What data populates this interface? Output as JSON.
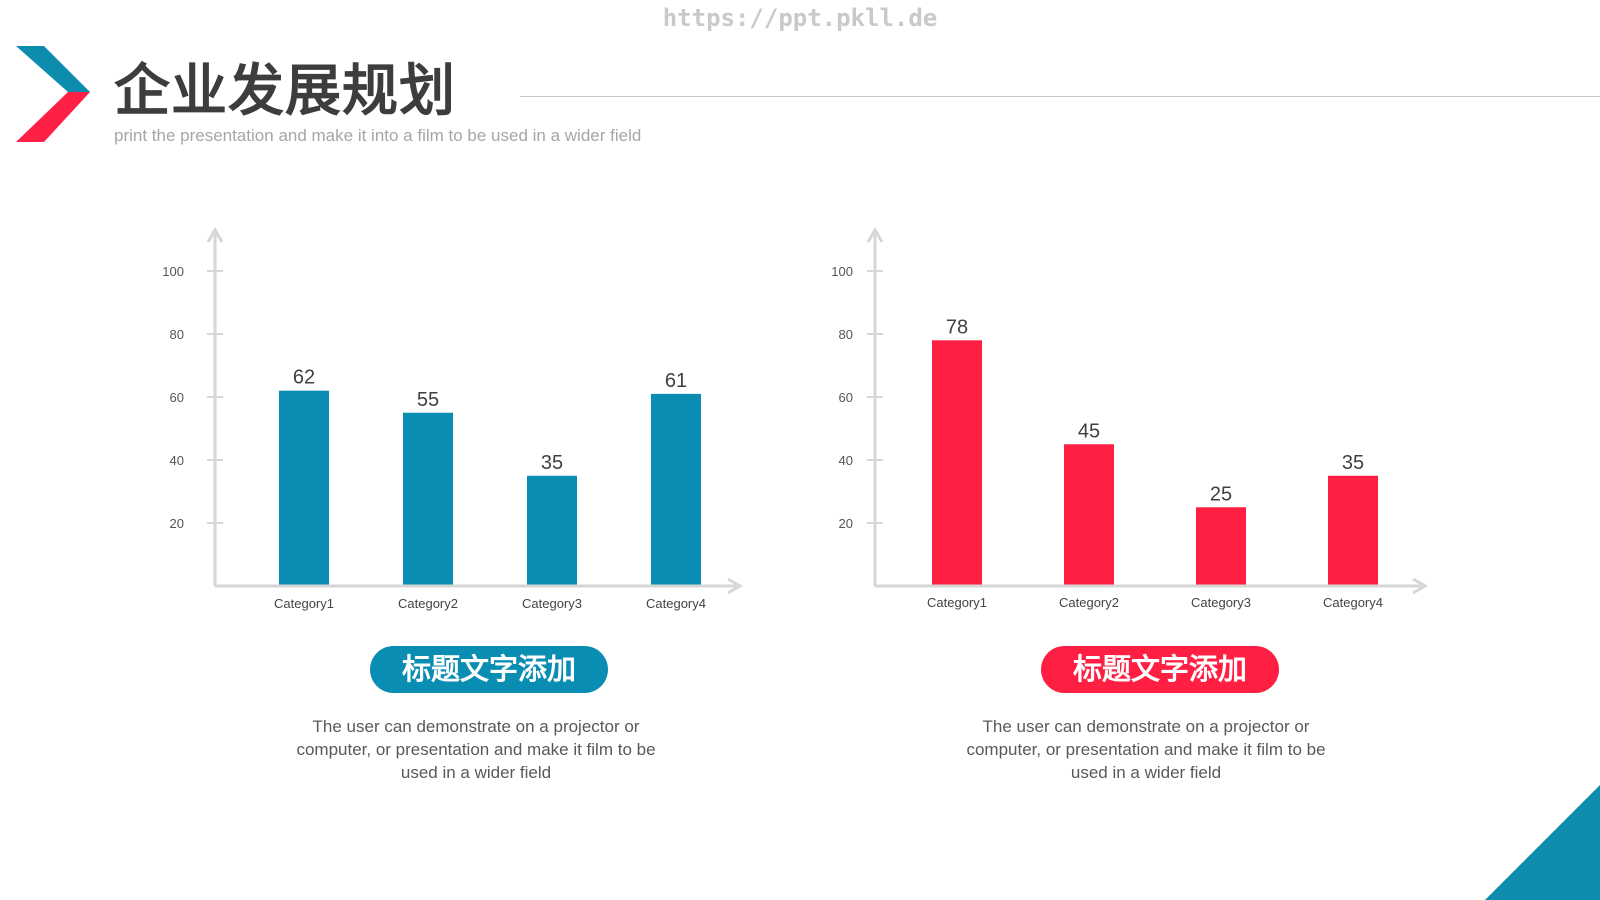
{
  "watermark": "https://ppt.pkll.de",
  "header": {
    "title": "企业发展规划",
    "subtitle": "print the presentation and make it into a film to be used in a wider field"
  },
  "colors": {
    "blue": "#0a8db2",
    "red": "#ff1f43",
    "axis": "#d6d6d6",
    "text": "#404040"
  },
  "chart_data": [
    {
      "type": "bar",
      "categories": [
        "Category1",
        "Category2",
        "Category3",
        "Category4"
      ],
      "values": [
        62,
        55,
        35,
        61
      ],
      "y_ticks": [
        20,
        40,
        60,
        80,
        100
      ],
      "ylim": [
        0,
        110
      ],
      "color": "#0a8db2",
      "title": "",
      "xlabel": "",
      "ylabel": ""
    },
    {
      "type": "bar",
      "categories": [
        "Category1",
        "Category2",
        "Category3",
        "Category4"
      ],
      "values": [
        78,
        45,
        25,
        35
      ],
      "y_ticks": [
        20,
        40,
        60,
        80,
        100
      ],
      "ylim": [
        0,
        110
      ],
      "color": "#ff1f43",
      "title": "",
      "xlabel": "",
      "ylabel": ""
    }
  ],
  "panels": [
    {
      "caption": "标题文字添加",
      "caption_color": "#0a8db2",
      "description": "The user can demonstrate on a projector or computer, or presentation and make it film to be used in a wider field"
    },
    {
      "caption": "标题文字添加",
      "caption_color": "#ff1f43",
      "description": "The user can demonstrate on a projector or computer, or presentation and make it film to be used in a wider field"
    }
  ]
}
